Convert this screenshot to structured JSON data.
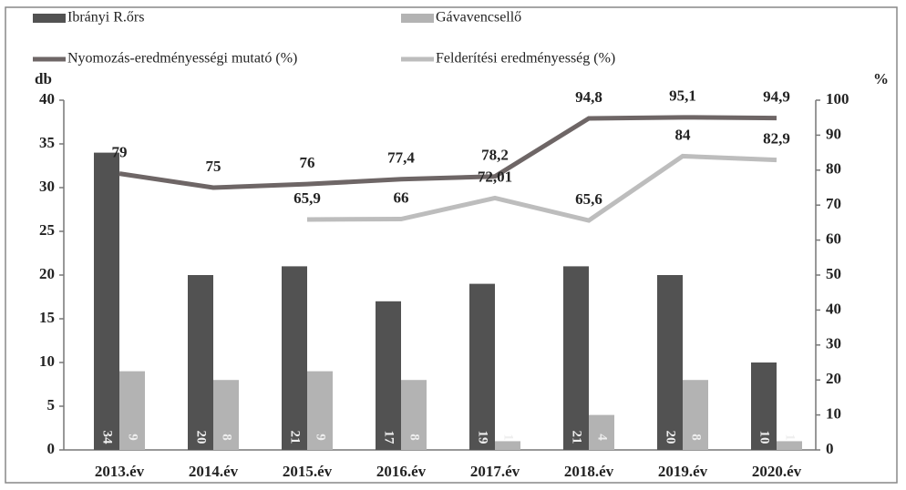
{
  "chart_data": {
    "type": "bar",
    "categories": [
      "2013.év",
      "2014.év",
      "2015.év",
      "2016.év",
      "2017.év",
      "2018.év",
      "2019.év",
      "2020.év"
    ],
    "series": [
      {
        "name": "Ibrányi R.őrs",
        "type": "bar",
        "color": "#525252",
        "values": [
          34,
          20,
          21,
          17,
          19,
          21,
          20,
          10
        ]
      },
      {
        "name": "Gávavencsellő",
        "type": "bar",
        "color": "#b3b3b3",
        "values": [
          9,
          8,
          9,
          8,
          1,
          4,
          8,
          1
        ]
      },
      {
        "name": "Nyomozás-eredményességi mutató (%)",
        "type": "line",
        "axis": "y2",
        "color": "#6e6666",
        "values": [
          79,
          75,
          76,
          77.4,
          78.2,
          94.8,
          95.1,
          94.9
        ],
        "value_labels": [
          "79",
          "75",
          "76",
          "77,4",
          "78,2",
          "94,8",
          "95,1",
          "94,9"
        ]
      },
      {
        "name": "Felderítési eredményesség (%)",
        "type": "line",
        "axis": "y2",
        "color": "#bdbdbd",
        "values": [
          null,
          null,
          65.9,
          66,
          72.01,
          65.6,
          84,
          82.9
        ],
        "value_labels": [
          null,
          null,
          "65,9",
          "66",
          "72,01",
          "65,6",
          "84",
          "82,9"
        ]
      }
    ],
    "ylabel": "db",
    "y2label": "%",
    "ylim": [
      0,
      40
    ],
    "yticks": [
      0,
      5,
      10,
      15,
      20,
      25,
      30,
      35,
      40
    ],
    "y2lim": [
      0,
      100
    ],
    "y2ticks": [
      0,
      10,
      20,
      30,
      40,
      50,
      60,
      70,
      80,
      90,
      100
    ],
    "grid": false
  }
}
